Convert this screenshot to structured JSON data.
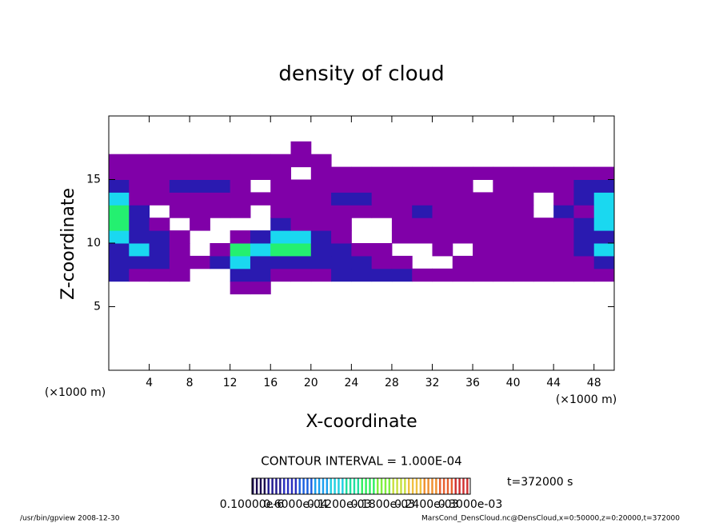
{
  "chart_data": {
    "type": "contour",
    "title": "density of cloud",
    "x_label": "X-coordinate",
    "y_label": "Z-coordinate",
    "x_unit_label": "(×1000 m)",
    "y_unit_label": "(×1000 m)",
    "contour_interval": "CONTOUR INTERVAL = 1.000E-04",
    "time_label": "t=372000 s",
    "footer_left": "/usr/bin/gpview   2008-12-30",
    "footer_right": "MarsCond_DensCloud.nc@DensCloud,x=0:50000,z=0:20000,t=372000",
    "xlim": [
      0,
      50
    ],
    "ylim": [
      0,
      20
    ],
    "xticks": [
      4,
      8,
      12,
      16,
      20,
      24,
      28,
      32,
      36,
      40,
      44,
      48
    ],
    "yticks": [
      5,
      10,
      15
    ],
    "x": [
      1,
      3,
      5,
      7,
      9,
      11,
      13,
      15,
      17,
      19,
      21,
      23,
      25,
      27,
      29,
      31,
      33,
      35,
      37,
      39,
      41,
      43,
      45,
      47,
      49
    ],
    "z": [
      6.5,
      7.5,
      8.5,
      9.5,
      10.5,
      11.5,
      12.5,
      13.5,
      14.5,
      15.5,
      16.5,
      17.5
    ],
    "values": [
      [
        0,
        0,
        0,
        0,
        0,
        0,
        3e-06,
        3e-06,
        0,
        0,
        0,
        0,
        0,
        0,
        0,
        0,
        0,
        0,
        0,
        0,
        0,
        0,
        0,
        0,
        0
      ],
      [
        3e-05,
        3e-06,
        3e-06,
        3e-06,
        0,
        0,
        3e-05,
        3e-05,
        3e-06,
        3e-06,
        3e-06,
        3e-05,
        3e-05,
        3e-05,
        3e-05,
        3e-06,
        3e-06,
        3e-06,
        3e-06,
        3e-06,
        3e-06,
        3e-06,
        3e-06,
        3e-06,
        3e-06
      ],
      [
        3e-05,
        3e-05,
        3e-05,
        3e-06,
        3e-06,
        3e-05,
        8e-05,
        3e-05,
        3e-05,
        3e-05,
        3e-05,
        3e-05,
        3e-05,
        3e-06,
        3e-06,
        0,
        0,
        3e-06,
        3e-06,
        3e-06,
        3e-06,
        3e-06,
        3e-06,
        3e-06,
        3e-05
      ],
      [
        3e-05,
        8e-05,
        3e-05,
        3e-06,
        0,
        3e-06,
        0.00013,
        8e-05,
        0.00013,
        0.00013,
        3e-05,
        3e-05,
        3e-06,
        3e-06,
        0,
        0,
        3e-06,
        0,
        3e-06,
        3e-06,
        3e-06,
        3e-06,
        3e-06,
        3e-05,
        8e-05
      ],
      [
        8e-05,
        3e-05,
        3e-05,
        3e-06,
        0,
        0,
        3e-06,
        3e-05,
        8e-05,
        8e-05,
        3e-05,
        3e-06,
        0,
        0,
        3e-06,
        3e-06,
        3e-06,
        3e-06,
        3e-06,
        3e-06,
        3e-06,
        3e-06,
        3e-06,
        3e-05,
        3e-05
      ],
      [
        0.00013,
        3e-05,
        3e-06,
        0,
        3e-06,
        0,
        0,
        0,
        3e-05,
        3e-06,
        3e-06,
        3e-06,
        0,
        0,
        3e-06,
        3e-06,
        3e-06,
        3e-06,
        3e-06,
        3e-06,
        3e-06,
        3e-06,
        3e-06,
        3e-05,
        8e-05
      ],
      [
        0.00013,
        3e-05,
        0,
        3e-06,
        3e-06,
        3e-06,
        3e-06,
        0,
        3e-06,
        3e-06,
        3e-06,
        3e-06,
        3e-06,
        3e-06,
        3e-06,
        3e-05,
        3e-06,
        3e-06,
        3e-06,
        3e-06,
        3e-06,
        0,
        3e-05,
        3e-06,
        8e-05
      ],
      [
        8e-05,
        3e-06,
        3e-06,
        3e-06,
        3e-06,
        3e-06,
        3e-06,
        3e-06,
        3e-06,
        3e-06,
        3e-06,
        3e-05,
        3e-05,
        3e-06,
        3e-06,
        3e-06,
        3e-06,
        3e-06,
        3e-06,
        3e-06,
        3e-06,
        0,
        3e-06,
        3e-05,
        8e-05
      ],
      [
        3e-05,
        3e-06,
        3e-06,
        3e-05,
        3e-05,
        3e-05,
        3e-06,
        0,
        3e-06,
        3e-06,
        3e-06,
        3e-06,
        3e-06,
        3e-06,
        3e-06,
        3e-06,
        3e-06,
        3e-06,
        0,
        3e-06,
        3e-06,
        3e-06,
        3e-06,
        3e-05,
        3e-05
      ],
      [
        3e-06,
        3e-06,
        3e-06,
        3e-06,
        3e-06,
        3e-06,
        3e-06,
        3e-06,
        3e-06,
        0,
        3e-06,
        3e-06,
        3e-06,
        3e-06,
        3e-06,
        3e-06,
        3e-06,
        3e-06,
        3e-06,
        3e-06,
        3e-06,
        3e-06,
        3e-06,
        3e-06,
        3e-06
      ],
      [
        3e-06,
        3e-06,
        3e-06,
        3e-06,
        3e-06,
        3e-06,
        3e-06,
        3e-06,
        3e-06,
        3e-06,
        3e-06,
        0,
        0,
        0,
        0,
        0,
        0,
        0,
        0,
        0,
        0,
        0,
        0,
        0,
        0
      ],
      [
        0,
        0,
        0,
        0,
        0,
        0,
        0,
        0,
        0,
        3e-06,
        0,
        0,
        0,
        0,
        0,
        0,
        0,
        0,
        0,
        0,
        0,
        0,
        0,
        0,
        0
      ]
    ],
    "levels": [
      1e-07,
      2e-05,
      5e-05,
      8e-05,
      0.00011
    ],
    "colors": [
      "#8000a8",
      "#2a1ab0",
      "#1a78ff",
      "#1ad8f0",
      "#24f070"
    ],
    "colorbar_colors": [
      "#1a0a50",
      "#201a90",
      "#2a30c0",
      "#1a60e0",
      "#1aa0f0",
      "#20d0e0",
      "#20e0a0",
      "#30f060",
      "#80f040",
      "#c8e040",
      "#f0c040",
      "#f09030",
      "#e86030",
      "#d03030"
    ],
    "colorbar_labels": [
      "0.10000e-6",
      "0.6000e-04",
      "0.1200e-03",
      "0.1800e-03",
      "0.2400e-03",
      "0.3000e-03"
    ]
  }
}
